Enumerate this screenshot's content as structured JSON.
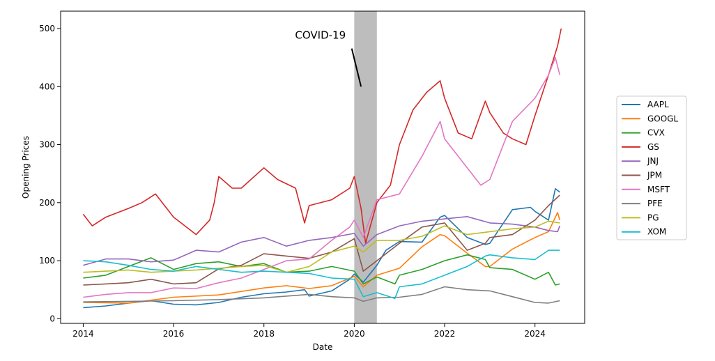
{
  "chart_data": {
    "type": "line",
    "xlabel": "Date",
    "ylabel": "Opening Prices",
    "xlim": [
      2013.5,
      2025.1
    ],
    "ylim": [
      -8,
      530
    ],
    "x_ticks": [
      2014,
      2016,
      2018,
      2020,
      2022,
      2024
    ],
    "y_ticks": [
      0,
      100,
      200,
      300,
      400,
      500
    ],
    "grid": false,
    "legend_position": "outside-right",
    "shaded_span": {
      "from": 2020.0,
      "to": 2020.5,
      "color": "#bdbdbd"
    },
    "annotation": {
      "text": "COVID-19",
      "text_at": [
        2019.25,
        480
      ],
      "arrow_to": [
        2020.15,
        400
      ]
    },
    "series": [
      {
        "name": "AAPL",
        "color": "#1f77b4",
        "x": [
          2014,
          2014.5,
          2015,
          2015.5,
          2016,
          2016.5,
          2017,
          2017.5,
          2018,
          2018.5,
          2018.9,
          2019,
          2019.5,
          2019.9,
          2020,
          2020.2,
          2020.5,
          2020.7,
          2021,
          2021.5,
          2021.9,
          2022,
          2022.5,
          2022.9,
          2023,
          2023.5,
          2023.9,
          2024,
          2024.3,
          2024.45,
          2024.55
        ],
        "values": [
          19,
          22,
          27,
          31,
          25,
          24,
          28,
          37,
          43,
          46,
          50,
          39,
          48,
          68,
          77,
          63,
          92,
          118,
          133,
          132,
          175,
          178,
          140,
          128,
          130,
          188,
          192,
          185,
          170,
          224,
          218
        ]
      },
      {
        "name": "GOOGL",
        "color": "#ff7f0e",
        "x": [
          2014,
          2015,
          2016,
          2017,
          2018,
          2018.5,
          2019,
          2019.5,
          2020,
          2020.2,
          2020.5,
          2021,
          2021.5,
          2021.9,
          2022,
          2022.5,
          2022.9,
          2023,
          2023.5,
          2024,
          2024.3,
          2024.5,
          2024.55
        ],
        "values": [
          28,
          27,
          37,
          41,
          53,
          57,
          52,
          57,
          73,
          55,
          75,
          87,
          124,
          145,
          143,
          113,
          90,
          90,
          120,
          140,
          150,
          183,
          170
        ]
      },
      {
        "name": "CVX",
        "color": "#2ca02c",
        "x": [
          2014,
          2014.5,
          2015,
          2015.5,
          2016,
          2016.5,
          2017,
          2017.5,
          2018,
          2018.5,
          2019,
          2019.5,
          2020,
          2020.2,
          2020.5,
          2020.9,
          2021,
          2021.5,
          2022,
          2022.5,
          2022.9,
          2023,
          2023.5,
          2024,
          2024.3,
          2024.45,
          2024.55
        ],
        "values": [
          70,
          75,
          90,
          105,
          85,
          95,
          98,
          90,
          95,
          80,
          82,
          90,
          82,
          60,
          72,
          60,
          75,
          85,
          100,
          110,
          102,
          88,
          85,
          68,
          80,
          58,
          60
        ]
      },
      {
        "name": "GS",
        "color": "#d62728",
        "x": [
          2014,
          2014.2,
          2014.5,
          2015,
          2015.3,
          2015.6,
          2016,
          2016.5,
          2016.8,
          2016.9,
          2017,
          2017.3,
          2017.5,
          2018,
          2018.3,
          2018.7,
          2018.9,
          2019,
          2019.5,
          2019.9,
          2020,
          2020.15,
          2020.25,
          2020.5,
          2020.8,
          2021,
          2021.3,
          2021.6,
          2021.9,
          2022,
          2022.3,
          2022.6,
          2022.9,
          2023,
          2023.3,
          2023.5,
          2023.8,
          2024,
          2024.3,
          2024.5,
          2024.58
        ],
        "values": [
          180,
          160,
          175,
          190,
          200,
          215,
          175,
          145,
          170,
          200,
          245,
          225,
          225,
          260,
          240,
          225,
          165,
          195,
          205,
          225,
          245,
          190,
          130,
          200,
          230,
          300,
          360,
          390,
          410,
          380,
          320,
          310,
          375,
          355,
          320,
          310,
          300,
          350,
          420,
          470,
          500
        ]
      },
      {
        "name": "JNJ",
        "color": "#9467bd",
        "x": [
          2014,
          2014.5,
          2015,
          2015.5,
          2016,
          2016.5,
          2017,
          2017.5,
          2018,
          2018.5,
          2019,
          2019.5,
          2020,
          2020.2,
          2020.5,
          2021,
          2021.5,
          2022,
          2022.5,
          2023,
          2023.5,
          2024,
          2024.3,
          2024.5,
          2024.55
        ],
        "values": [
          92,
          103,
          103,
          98,
          101,
          118,
          115,
          132,
          140,
          125,
          135,
          140,
          147,
          125,
          145,
          160,
          168,
          172,
          176,
          165,
          163,
          158,
          152,
          150,
          160
        ]
      },
      {
        "name": "JPM",
        "color": "#8c564b",
        "x": [
          2014,
          2014.5,
          2015,
          2015.5,
          2016,
          2016.5,
          2017,
          2017.5,
          2018,
          2018.5,
          2019,
          2019.5,
          2020,
          2020.2,
          2020.5,
          2021,
          2021.5,
          2022,
          2022.5,
          2022.9,
          2023,
          2023.5,
          2024,
          2024.3,
          2024.55
        ],
        "values": [
          58,
          60,
          62,
          68,
          60,
          62,
          86,
          92,
          112,
          108,
          104,
          115,
          138,
          82,
          100,
          130,
          158,
          165,
          118,
          130,
          140,
          145,
          170,
          195,
          213
        ]
      },
      {
        "name": "MSFT",
        "color": "#e377c2",
        "x": [
          2014,
          2014.5,
          2015,
          2015.5,
          2016,
          2016.5,
          2017,
          2017.5,
          2018,
          2018.5,
          2019,
          2019.5,
          2019.9,
          2020,
          2020.2,
          2020.5,
          2021,
          2021.5,
          2021.9,
          2022,
          2022.5,
          2022.8,
          2023,
          2023.5,
          2024,
          2024.3,
          2024.45,
          2024.55
        ],
        "values": [
          37,
          42,
          45,
          45,
          53,
          52,
          62,
          70,
          85,
          100,
          103,
          135,
          158,
          170,
          140,
          205,
          215,
          280,
          340,
          310,
          260,
          230,
          240,
          340,
          380,
          420,
          450,
          420
        ]
      },
      {
        "name": "PFE",
        "color": "#7f7f7f",
        "x": [
          2014,
          2015,
          2016,
          2017,
          2018,
          2019,
          2019.5,
          2020,
          2020.2,
          2020.5,
          2021,
          2021.5,
          2022,
          2022.5,
          2023,
          2023.5,
          2024,
          2024.3,
          2024.55
        ],
        "values": [
          29,
          30,
          31,
          33,
          36,
          42,
          38,
          36,
          30,
          36,
          37,
          42,
          55,
          50,
          48,
          38,
          28,
          27,
          31
        ]
      },
      {
        "name": "PG",
        "color": "#bcbd22",
        "x": [
          2014,
          2014.5,
          2015,
          2015.5,
          2016,
          2016.5,
          2017,
          2017.5,
          2018,
          2018.5,
          2019,
          2019.5,
          2020,
          2020.2,
          2020.5,
          2021,
          2021.5,
          2022,
          2022.5,
          2023,
          2023.5,
          2024,
          2024.3,
          2024.55
        ],
        "values": [
          80,
          82,
          84,
          80,
          82,
          84,
          87,
          90,
          92,
          80,
          90,
          115,
          125,
          115,
          135,
          135,
          142,
          160,
          145,
          150,
          155,
          158,
          168,
          165
        ]
      },
      {
        "name": "XOM",
        "color": "#17becf",
        "x": [
          2014,
          2014.5,
          2015,
          2015.5,
          2016,
          2016.5,
          2017,
          2017.5,
          2018,
          2018.5,
          2019,
          2019.5,
          2020,
          2020.2,
          2020.5,
          2020.9,
          2021,
          2021.5,
          2022,
          2022.5,
          2022.9,
          2023,
          2023.5,
          2024,
          2024.3,
          2024.55
        ],
        "values": [
          100,
          98,
          92,
          85,
          82,
          90,
          85,
          80,
          82,
          80,
          78,
          70,
          68,
          38,
          45,
          35,
          55,
          60,
          75,
          90,
          108,
          110,
          105,
          102,
          118,
          118
        ]
      }
    ]
  }
}
